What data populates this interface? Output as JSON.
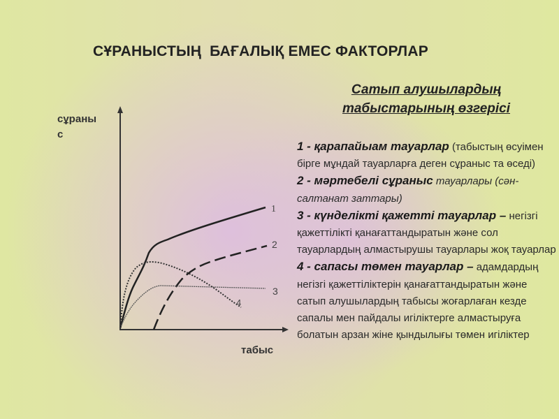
{
  "title": "СҰРАНЫСТЫҢ  БАҒАЛЫҚ ЕМЕС ФАКТОРЛАР",
  "subheading": [
    "Сатып алушылардың",
    "табыстарының өзгерісі"
  ],
  "diagram": {
    "ylabel": "сұранысс",
    "ylabel_lines": [
      "сұраны",
      "с"
    ],
    "xlabel": "табыс",
    "curve_labels": [
      "1",
      "2",
      "3",
      "4"
    ]
  },
  "items": [
    {
      "head": "1 - қарапайыам тауарлар",
      "rest": " (табыстың өсуімен бірге мұндай тауарларға деген сұраныс та өседі)"
    },
    {
      "head": "2 - мәртебелі сұраныс",
      "rest": " тауарлары (сән-салтанат заттары)"
    },
    {
      "head": "3 - күнделікті қажетті тауарлар –",
      "rest": " негізгі қажеттілікті қанағаттандыратын және сол тауарлардың алмастырушы тауарлары жоқ тауарлар"
    },
    {
      "head": "4 - сапасы төмен тауарлар –",
      "rest": " адамдардың негізгі қажеттіліктерін қанағаттандыратын және сатып алушылардың табысы жоғарлаған кезде сапалы мен пайдалы игіліктерге алмастыруға болатын арзан жіне қындылығы төмен игіліктер"
    }
  ]
}
